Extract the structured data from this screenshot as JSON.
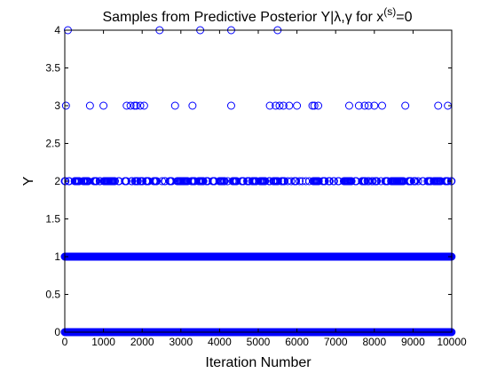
{
  "chart_data": {
    "type": "scatter",
    "title": "Samples from Predictive Posterior  Y|λ,γ for x",
    "title_sup": "(s)",
    "title_suffix": "=0",
    "xlabel": "Iteration Number",
    "ylabel": "Y",
    "xlim": [
      0,
      10000
    ],
    "ylim": [
      0,
      4
    ],
    "xticks": [
      0,
      1000,
      2000,
      3000,
      4000,
      5000,
      6000,
      7000,
      8000,
      9000,
      10000
    ],
    "xtick_labels": [
      "0",
      "1000",
      "2000",
      "3000",
      "4000",
      "5000",
      "6000",
      "7000",
      "8000",
      "9000",
      "10000"
    ],
    "yticks": [
      0,
      0.5,
      1,
      1.5,
      2,
      2.5,
      3,
      3.5,
      4
    ],
    "ytick_labels": [
      "0",
      "0.5",
      "1",
      "1.5",
      "2",
      "2.5",
      "3",
      "3.5",
      "4"
    ],
    "grid": false,
    "marker": "circle",
    "marker_color": "#0000ff",
    "series": [
      {
        "y": 4,
        "x": [
          80,
          2450,
          3500,
          4300,
          5500
        ]
      },
      {
        "y": 3,
        "x": [
          30,
          650,
          1000,
          1600,
          1700,
          1800,
          1850,
          1950,
          2050,
          2850,
          3300,
          4300,
          5300,
          5450,
          5550,
          5650,
          5800,
          6000,
          6400,
          6450,
          6550,
          7350,
          7600,
          7750,
          7850,
          8000,
          8200,
          8800,
          9650,
          9900
        ]
      },
      {
        "y": 2,
        "x_range": [
          0,
          10000
        ],
        "density": "many samples throughout"
      },
      {
        "y": 1,
        "x_range": [
          0,
          10000
        ],
        "density": "continuous"
      },
      {
        "y": 0,
        "x_range": [
          0,
          10000
        ],
        "density": "continuous"
      }
    ]
  }
}
